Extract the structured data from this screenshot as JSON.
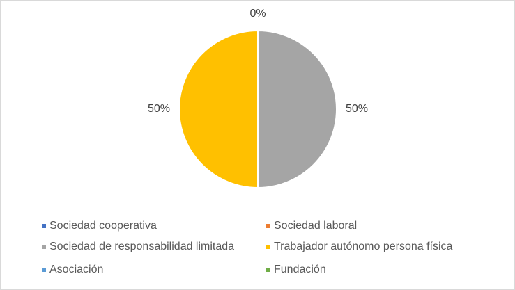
{
  "chart_data": {
    "type": "pie",
    "categories": [
      "Sociedad cooperativa",
      "Sociedad laboral",
      "Sociedad de responsabilidad limitada",
      "Trabajador autónomo persona física",
      "Asociación",
      "Fundación"
    ],
    "values": [
      0,
      0,
      50,
      50,
      0,
      0
    ],
    "data_labels": [
      "0%",
      "",
      "50%",
      "50%",
      "",
      ""
    ],
    "colors": [
      "#4472c4",
      "#ed7d31",
      "#a5a5a5",
      "#ffc000",
      "#5b9bd5",
      "#70ad47"
    ],
    "legend_position": "bottom"
  }
}
